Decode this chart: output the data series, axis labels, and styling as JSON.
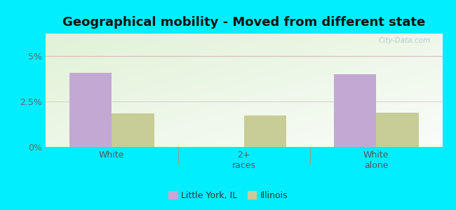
{
  "title": "Geographical mobility - Moved from different state",
  "categories": [
    "White",
    "2+\nraces",
    "White\nalone"
  ],
  "little_york_values": [
    4.1,
    0.0,
    4.0
  ],
  "illinois_values": [
    1.85,
    1.75,
    1.9
  ],
  "ylim": [
    0,
    6.25
  ],
  "yticks": [
    0,
    2.5,
    5.0
  ],
  "ytick_labels": [
    "0%",
    "2.5%",
    "5%"
  ],
  "bar_width": 0.32,
  "little_york_color": "#c4a8d4",
  "illinois_color": "#c8cc96",
  "outer_bg": "#00eeff",
  "plot_bg": "#e8f5e0",
  "title_fontsize": 13,
  "legend_label_1": "Little York, IL",
  "legend_label_2": "Illinois",
  "watermark": "City-Data.com",
  "grid_color_5pct": "#e8c8c8",
  "grid_color_2_5pct": "#e8d8d8"
}
